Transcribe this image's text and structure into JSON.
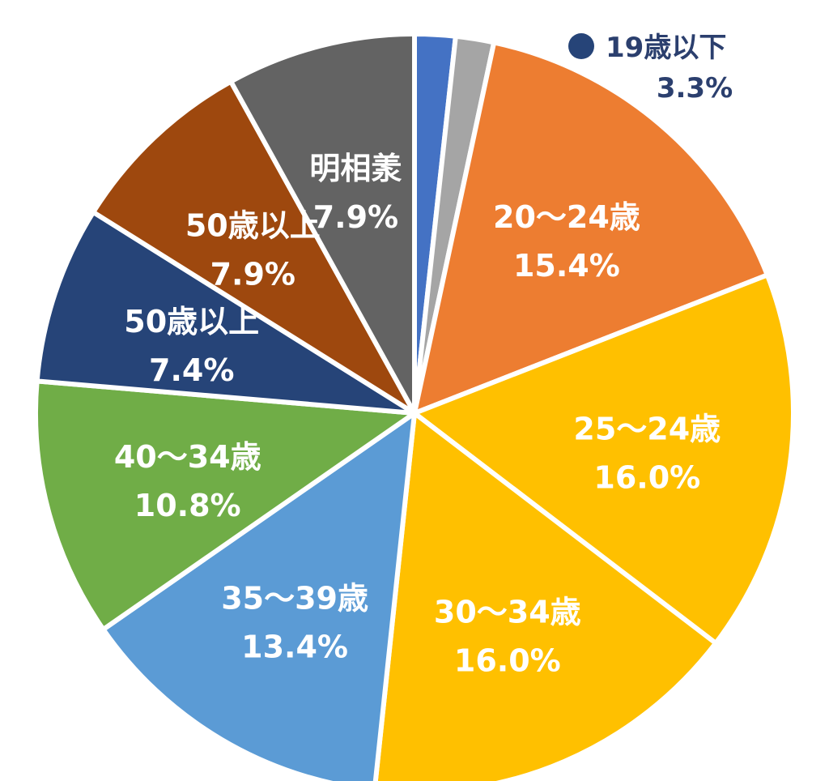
{
  "chart_data": {
    "type": "pie",
    "start_angle_deg": 0,
    "direction": "clockwise",
    "slices": [
      {
        "label": "",
        "value": 1.7,
        "display": "",
        "color": "#4472c4"
      },
      {
        "label": "",
        "value": 1.6,
        "display": "",
        "color": "#a5a5a5"
      },
      {
        "label": "20～24歳",
        "value": 15.4,
        "display": "15.4%",
        "color": "#ed7d31"
      },
      {
        "label": "25～24歳",
        "value": 16.0,
        "display": "16.0%",
        "color": "#ffc000"
      },
      {
        "label": "30～34歳",
        "value": 16.0,
        "display": "16.0%",
        "color": "#ffc000"
      },
      {
        "label": "35～39歳",
        "value": 13.4,
        "display": "13.4%",
        "color": "#5b9bd5"
      },
      {
        "label": "40～34歳",
        "value": 10.8,
        "display": "10.8%",
        "color": "#70ad47"
      },
      {
        "label": "50歳以上",
        "value": 7.4,
        "display": "7.4%",
        "color": "#264478"
      },
      {
        "label": "50歳以上",
        "value": 7.9,
        "display": "7.9%",
        "color": "#9e480e"
      },
      {
        "label": "明相羕",
        "value": 7.9,
        "display": "7.9%",
        "color": "#636363"
      }
    ],
    "legend": {
      "label": "19歳以下",
      "display": "3.3%",
      "marker_color": "#264478",
      "placement": "top-right"
    }
  }
}
